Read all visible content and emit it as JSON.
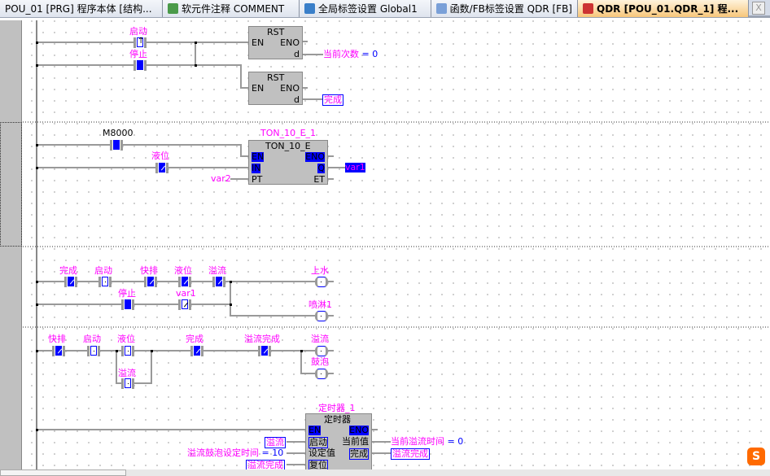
{
  "tabs": [
    {
      "label": "POU_01 [PRG] 程序本体 [结构..."
    },
    {
      "label": "软元件注释 COMMENT"
    },
    {
      "label": "全局标签设置 Global1"
    },
    {
      "label": "函数/FB标签设置 QDR [FB]"
    },
    {
      "label": "QDR [POU_01.QDR_1] 程...",
      "active": true
    }
  ],
  "close_label": "X",
  "net1": {
    "c1": "启动",
    "c2": "停止",
    "rst1": {
      "title": "RST",
      "en": "EN",
      "eno": "ENO",
      "d": "d",
      "out_name": "当前次数",
      "out_eq": "= 0"
    },
    "rst2": {
      "title": "RST",
      "en": "EN",
      "eno": "ENO",
      "d": "d",
      "out": "完成"
    }
  },
  "net2": {
    "c1": "M8000",
    "c2": "液位",
    "pt_in": "var2",
    "block": {
      "instance": "TON_10_E_1",
      "title": "TON_10_E",
      "en": "EN",
      "in": "IN",
      "pt": "PT",
      "eno": "ENO",
      "q": "Q",
      "et": "ET"
    },
    "q_out": "var1"
  },
  "net3": {
    "row1": [
      "完成",
      "启动",
      "快排",
      "液位",
      "溢流"
    ],
    "row2": [
      "停止",
      "var1"
    ],
    "coils": [
      "上水",
      "喷淋1"
    ]
  },
  "net4": {
    "row1": [
      "快排",
      "启动",
      "液位",
      "完成",
      "溢流完成"
    ],
    "branch": "溢流",
    "coils": [
      "溢流",
      "鼓泡"
    ]
  },
  "timer": {
    "instance": "定时器_1",
    "title": "定时器",
    "en": "EN",
    "start": "启动",
    "setv": "设定值",
    "reset": "复位",
    "eno": "ENO",
    "curv": "当前值",
    "done": "完成",
    "in_start": "溢流",
    "in_set_name": "溢流鼓泡设定时间",
    "in_set_eq": "= 10",
    "in_reset": "溢流完成",
    "out_cur_name": "当前溢流时间",
    "out_cur_eq": "= 0",
    "out_done": "溢流完成"
  },
  "logo": "S",
  "colors": {
    "label": "#ff00ff",
    "variable_highlight": "#0000ff",
    "block": "#c0c0c0"
  }
}
